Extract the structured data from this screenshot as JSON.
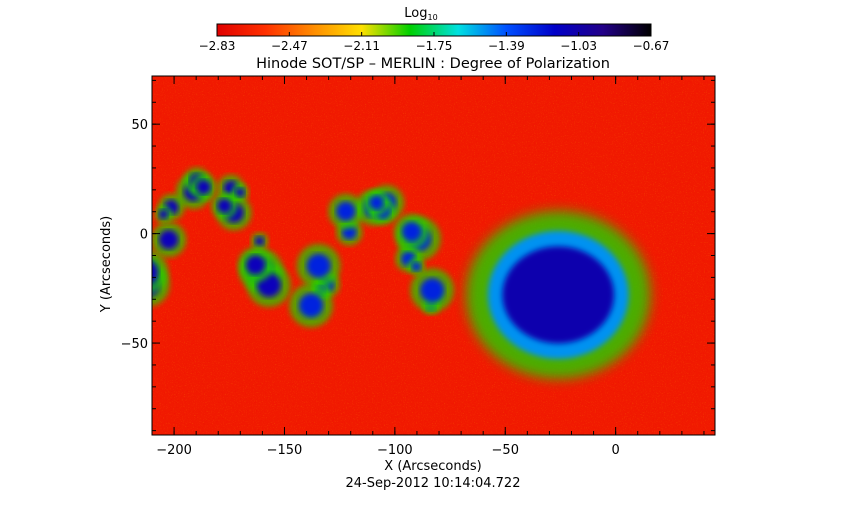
{
  "chart_data": {
    "type": "heatmap",
    "title": "Hinode SOT/SP – MERLIN : Degree of Polarization",
    "xlabel": "X (Arcseconds)",
    "ylabel": "Y (Arcseconds)",
    "xlim": [
      -210,
      45
    ],
    "ylim": [
      -92,
      72
    ],
    "x_ticks": [
      -200,
      -150,
      -100,
      -50,
      0
    ],
    "x_tick_labels": [
      "−200",
      "−150",
      "−100",
      "−50",
      "0"
    ],
    "y_ticks": [
      -50,
      0,
      50
    ],
    "y_tick_labels": [
      "−50",
      "0",
      "50"
    ],
    "colorbar": {
      "label_main": "Log",
      "label_sub": "10",
      "range": [
        -2.83,
        -0.67
      ],
      "ticks": [
        -2.83,
        -2.47,
        -2.11,
        -1.75,
        -1.39,
        -1.03,
        -0.67
      ],
      "tick_labels": [
        "−2.83",
        "−2.47",
        "−2.11",
        "−1.75",
        "−1.39",
        "−1.03",
        "−0.67"
      ],
      "colormap": [
        "#e00000",
        "#ff3000",
        "#ff8c00",
        "#ffe000",
        "#00d000",
        "#00e0e0",
        "#0050ff",
        "#0000c8",
        "#220088",
        "#000000"
      ]
    },
    "field_background_log_value": -2.7,
    "features": [
      {
        "name": "sunspot umbra",
        "x": -25,
        "y": -27,
        "log_value": -0.75
      },
      {
        "name": "sunspot penumbra",
        "x": -26,
        "y": -28,
        "log_value": -1.05
      },
      {
        "name": "plage region west",
        "x": -185,
        "y": 0,
        "log_value": -1.1
      },
      {
        "name": "plage region central",
        "x": -110,
        "y": -10,
        "log_value": -1.25
      }
    ],
    "grid": false,
    "legend": "colorbar-top"
  },
  "timestamp": "24-Sep-2012 10:14:04.722"
}
